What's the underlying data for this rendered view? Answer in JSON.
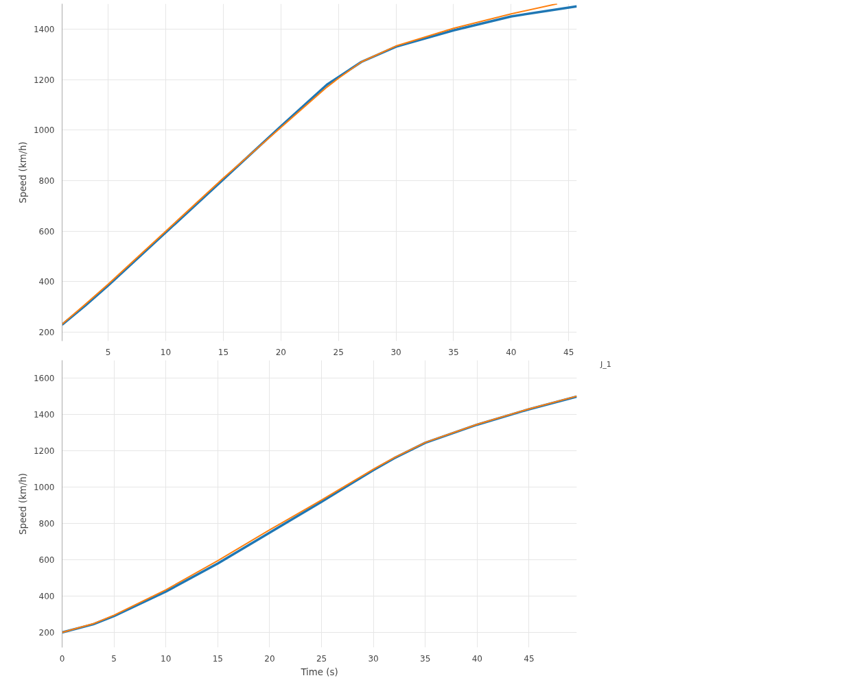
{
  "chart_data": [
    {
      "type": "line",
      "ylabel": "Speed (km/h)",
      "xlim": [
        1,
        45.7
      ],
      "ylim": [
        165,
        1500
      ],
      "xticks": [
        5,
        10,
        15,
        20,
        25,
        30,
        35,
        40,
        45
      ],
      "yticks": [
        200,
        400,
        600,
        800,
        1000,
        1200,
        1400
      ],
      "grid": true,
      "series": [
        {
          "color": "#1f77b4",
          "x": [
            1,
            3,
            5,
            10,
            15,
            20,
            24,
            25,
            27,
            30,
            35,
            40,
            45.7
          ],
          "values": [
            230,
            305,
            385,
            595,
            805,
            1015,
            1180,
            1210,
            1270,
            1330,
            1395,
            1450,
            1490
          ]
        },
        {
          "color": "#ff7f0e",
          "x": [
            1,
            3,
            5,
            10,
            15,
            20,
            24,
            25,
            27,
            30,
            35,
            40,
            44
          ],
          "values": [
            232,
            310,
            390,
            600,
            810,
            1010,
            1170,
            1205,
            1270,
            1333,
            1403,
            1460,
            1500
          ]
        }
      ]
    },
    {
      "type": "line",
      "xlabel": "Time (s)",
      "ylabel": "Speed (km/h)",
      "xlim": [
        0,
        49.6
      ],
      "ylim": [
        117,
        1700
      ],
      "xticks": [
        0,
        5,
        10,
        15,
        20,
        25,
        30,
        35,
        40,
        45
      ],
      "yticks": [
        200,
        400,
        600,
        800,
        1000,
        1200,
        1400,
        1600
      ],
      "grid": true,
      "annotations": [
        "J_1"
      ],
      "series": [
        {
          "color": "#1f77b4",
          "x": [
            0,
            3,
            5,
            10,
            15,
            20,
            25,
            30,
            32,
            35,
            40,
            45,
            49.6
          ],
          "values": [
            200,
            245,
            290,
            425,
            580,
            750,
            920,
            1095,
            1160,
            1245,
            1345,
            1430,
            1500
          ]
        },
        {
          "color": "#ff7f0e",
          "x": [
            0,
            3,
            5,
            10,
            15,
            20,
            25,
            30,
            32,
            35,
            40,
            45,
            49.6
          ],
          "values": [
            200,
            248,
            295,
            435,
            595,
            765,
            930,
            1100,
            1163,
            1247,
            1347,
            1432,
            1502
          ]
        }
      ]
    }
  ]
}
